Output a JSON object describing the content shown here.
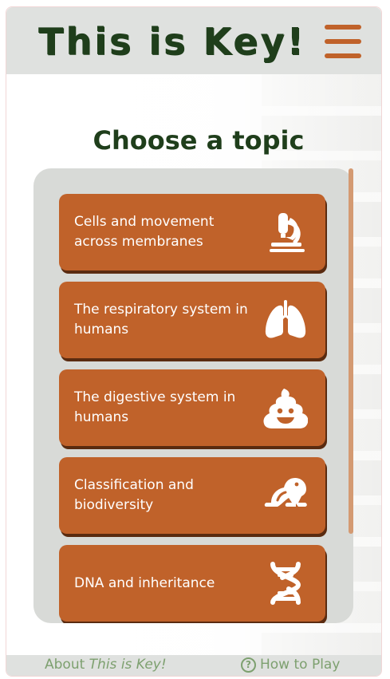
{
  "header": {
    "logo": "This is Key!",
    "menu_icon": "hamburger-menu-icon"
  },
  "main": {
    "title": "Choose a topic",
    "topics": [
      {
        "label": "Cells and movement across membranes",
        "icon": "microscope-icon"
      },
      {
        "label": "The respiratory system in humans",
        "icon": "lungs-icon"
      },
      {
        "label": "The digestive system in humans",
        "icon": "poop-icon"
      },
      {
        "label": "Classification and biodiversity",
        "icon": "frog-icon"
      },
      {
        "label": "DNA and inheritance",
        "icon": "dna-icon"
      }
    ]
  },
  "footer": {
    "about_prefix": "About ",
    "about_name": "This is Key!",
    "howto_label": "How to Play",
    "howto_icon_glyph": "?"
  },
  "colors": {
    "accent": "#c0622a",
    "brand_dark": "#1f3e1b",
    "footer_link": "#7da06f",
    "panel": "#d8dad7"
  }
}
